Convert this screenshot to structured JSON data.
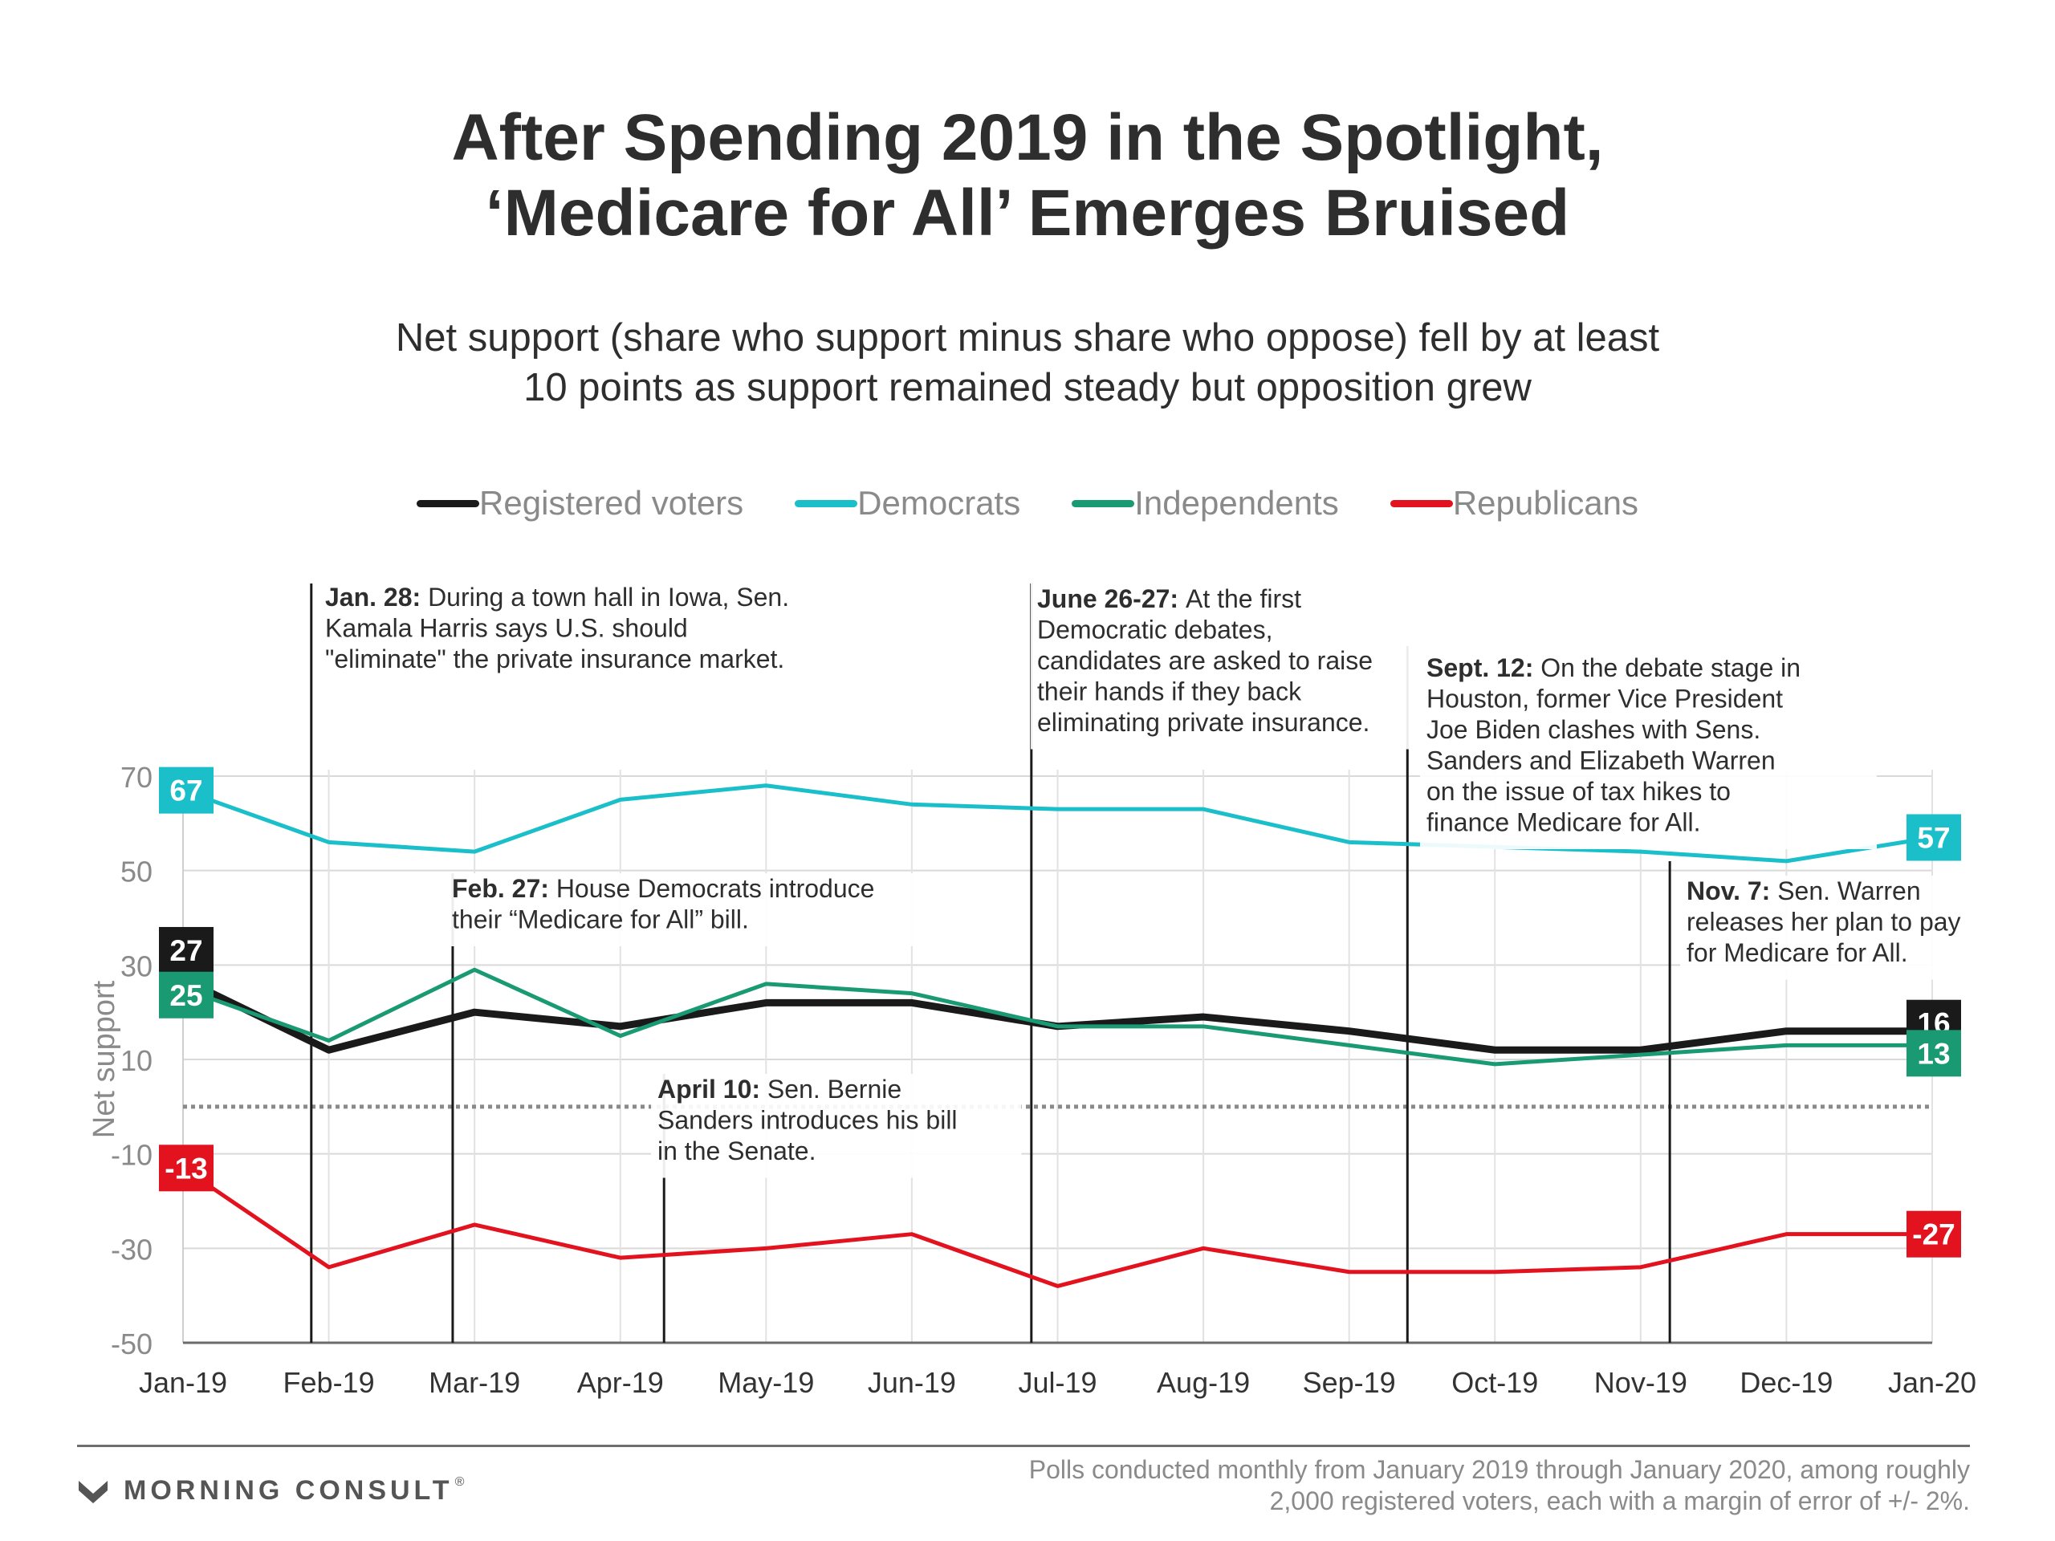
{
  "title_line1": "After Spending 2019 in the Spotlight,",
  "title_line2": "‘Medicare for All’ Emerges Bruised",
  "subtitle_line1": "Net support (share who support minus share who oppose) fell by at least",
  "subtitle_line2": "10 points as support remained steady but opposition grew",
  "footer": {
    "brand": "MORNING CONSULT",
    "brand_mark": "®",
    "note_line1": "Polls conducted monthly from January 2019 through January 2020, among roughly",
    "note_line2": "2,000 registered voters, each with a margin of error of +/- 2%."
  },
  "chart_data": {
    "type": "line",
    "ylabel": "Net support",
    "xlabel": "",
    "ylim": [
      -50,
      70
    ],
    "yticks": [
      70,
      50,
      30,
      10,
      -10,
      -30,
      -50
    ],
    "reference_line": 0,
    "grid": true,
    "legend_position": "top",
    "categories": [
      "Jan-19",
      "Feb-19",
      "Mar-19",
      "Apr-19",
      "May-19",
      "Jun-19",
      "Jul-19",
      "Aug-19",
      "Sep-19",
      "Oct-19",
      "Nov-19",
      "Dec-19",
      "Jan-20"
    ],
    "series": [
      {
        "name": "Registered voters",
        "color": "#1a1a1a",
        "values": [
          27,
          12,
          20,
          17,
          22,
          22,
          17,
          19,
          16,
          12,
          12,
          16,
          16
        ],
        "start_label": "27",
        "end_label": "16"
      },
      {
        "name": "Democrats",
        "color": "#1bbfc9",
        "values": [
          67,
          56,
          54,
          65,
          68,
          64,
          63,
          63,
          56,
          55,
          54,
          52,
          57
        ],
        "start_label": "67",
        "end_label": "57"
      },
      {
        "name": "Independents",
        "color": "#1a9a72",
        "values": [
          25,
          14,
          29,
          15,
          26,
          24,
          17,
          17,
          13,
          9,
          11,
          13,
          13
        ],
        "start_label": "25",
        "end_label": "13"
      },
      {
        "name": "Republicans",
        "color": "#e3121f",
        "values": [
          -13,
          -34,
          -25,
          -32,
          -30,
          -27,
          -38,
          -30,
          -35,
          -35,
          -34,
          -27,
          -27
        ],
        "start_label": "-13",
        "end_label": "-27"
      }
    ],
    "annotations": [
      {
        "x_month": 0.88,
        "bold": "Jan. 28:",
        "text": [
          "During a town hall in Iowa, Sen.",
          "Kamala Harris says U.S. should",
          "\"eliminate\" the private insurance market."
        ]
      },
      {
        "x_month": 1.85,
        "bold": "Feb. 27:",
        "text": [
          "House Democrats introduce",
          "their “Medicare for All” bill."
        ]
      },
      {
        "x_month": 3.3,
        "bold": "April 10:",
        "text": [
          "Sen. Bernie",
          "Sanders introduces his bill",
          "in the Senate."
        ]
      },
      {
        "x_month": 5.82,
        "bold": "June 26-27:",
        "text": [
          "At the first",
          "Democratic debates,",
          "candidates are asked to raise",
          "their hands if they back",
          "eliminating private insurance."
        ]
      },
      {
        "x_month": 8.4,
        "bold": "Sept. 12:",
        "text": [
          "On the debate stage in",
          "Houston, former Vice President",
          "Joe Biden clashes with Sens.",
          "Sanders and Elizabeth Warren",
          "on the issue of tax hikes to",
          "finance Medicare for All."
        ]
      },
      {
        "x_month": 10.2,
        "bold": "Nov. 7:",
        "text": [
          "Sen. Warren",
          "releases her plan to pay",
          "for Medicare for All."
        ]
      }
    ]
  }
}
